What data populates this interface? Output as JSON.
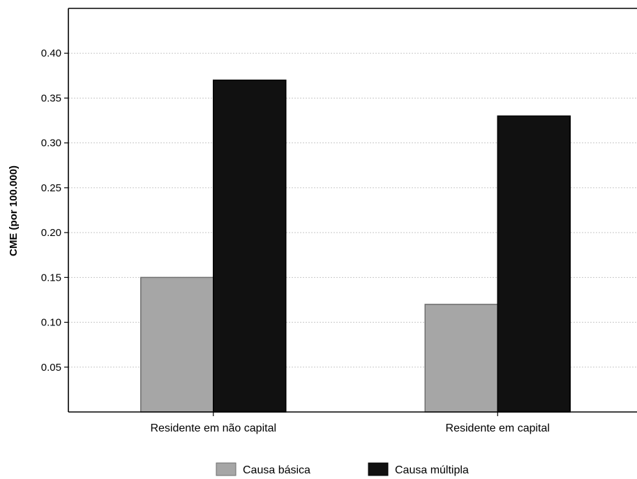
{
  "chart_data": {
    "type": "bar",
    "title": "",
    "xlabel": "",
    "ylabel": "CME (por 100.000)",
    "ylim": [
      0,
      0.45
    ],
    "yticks": [
      0.05,
      0.1,
      0.15,
      0.2,
      0.25,
      0.3,
      0.35,
      0.4
    ],
    "ytick_labels": [
      "0.05",
      "0.10",
      "0.15",
      "0.20",
      "0.25",
      "0.30",
      "0.35",
      "0.40"
    ],
    "grid": "horizontal-dotted",
    "legend_position": "bottom",
    "categories": [
      "Residente em não capital",
      "Residente em capital"
    ],
    "series": [
      {
        "name": "Causa básica",
        "values": [
          0.15,
          0.12
        ],
        "color": "#a6a6a6"
      },
      {
        "name": "Causa múltipla",
        "values": [
          0.37,
          0.33
        ],
        "color": "#111111"
      }
    ]
  }
}
